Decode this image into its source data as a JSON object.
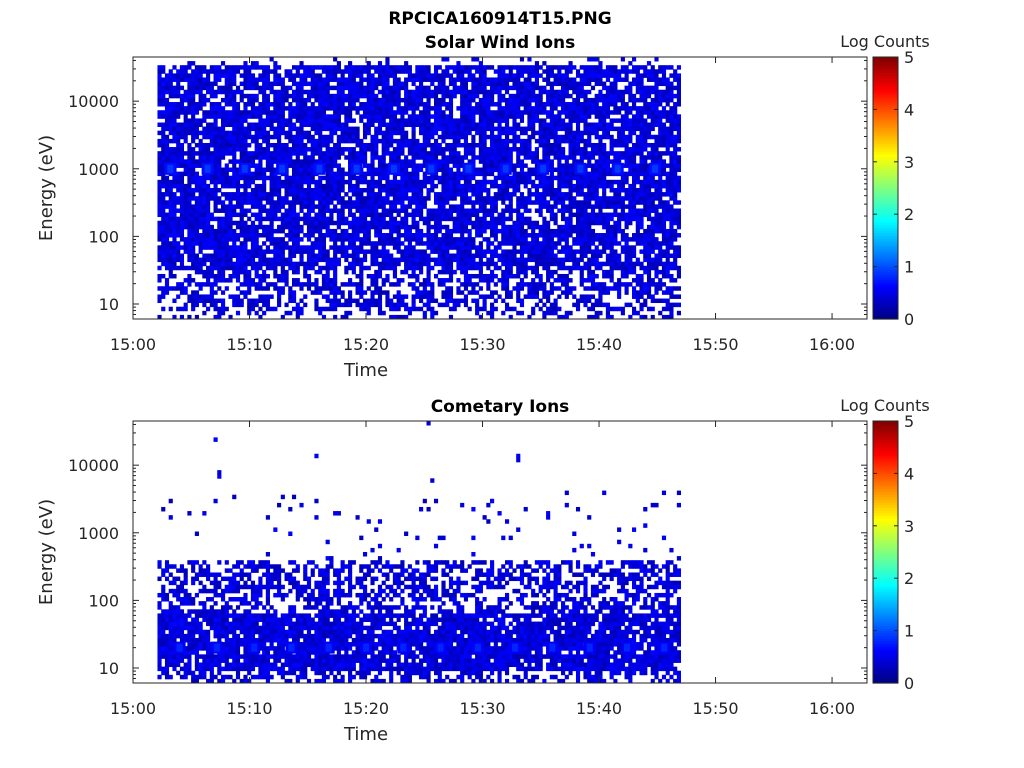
{
  "figure": {
    "title": "RPCICA160914T15.PNG"
  },
  "chart_data": [
    {
      "type": "heatmap",
      "title": "Solar Wind Ions",
      "xlabel": "Time",
      "ylabel": "Energy (eV)",
      "x_ticks": [
        "15:00",
        "15:10",
        "15:20",
        "15:30",
        "15:40",
        "15:50",
        "16:00"
      ],
      "x_range_minutes": [
        0,
        63
      ],
      "y_ticks": [
        "10",
        "100",
        "1000",
        "10000"
      ],
      "y_scale": "log",
      "y_range": [
        6,
        45000
      ],
      "data_extent_minutes": [
        2.1,
        47
      ],
      "colorbar": {
        "label": "Log Counts",
        "ticks": [
          "0",
          "1",
          "2",
          "3",
          "4",
          "5"
        ],
        "range": [
          0,
          5
        ],
        "colormap": "jet"
      },
      "peaks": [
        {
          "t": 3.2,
          "energy": 1000,
          "log_counts": 0.9
        },
        {
          "t": 6.4,
          "energy": 1000,
          "log_counts": 0.9
        },
        {
          "t": 9.6,
          "energy": 1000,
          "log_counts": 0.9
        },
        {
          "t": 12.8,
          "energy": 1000,
          "log_counts": 0.9
        },
        {
          "t": 16.0,
          "energy": 1000,
          "log_counts": 0.9
        },
        {
          "t": 19.2,
          "energy": 1000,
          "log_counts": 0.9
        },
        {
          "t": 22.4,
          "energy": 1000,
          "log_counts": 0.9
        },
        {
          "t": 25.6,
          "energy": 1000,
          "log_counts": 0.9
        },
        {
          "t": 28.8,
          "energy": 1000,
          "log_counts": 0.9
        },
        {
          "t": 32.0,
          "energy": 1000,
          "log_counts": 0.9
        },
        {
          "t": 35.2,
          "energy": 1000,
          "log_counts": 0.9
        },
        {
          "t": 38.4,
          "energy": 1000,
          "log_counts": 0.9
        },
        {
          "t": 41.6,
          "energy": 1000,
          "log_counts": 0.9
        },
        {
          "t": 44.8,
          "energy": 1000,
          "log_counts": 0.9
        }
      ]
    },
    {
      "type": "heatmap",
      "title": "Cometary Ions",
      "xlabel": "Time",
      "ylabel": "Energy (eV)",
      "x_ticks": [
        "15:00",
        "15:10",
        "15:20",
        "15:30",
        "15:40",
        "15:50",
        "16:00"
      ],
      "x_range_minutes": [
        0,
        63
      ],
      "y_ticks": [
        "10",
        "100",
        "1000",
        "10000"
      ],
      "y_scale": "log",
      "y_range": [
        6,
        45000
      ],
      "data_extent_minutes": [
        2.1,
        47
      ],
      "colorbar": {
        "label": "Log Counts",
        "ticks": [
          "0",
          "1",
          "2",
          "3",
          "4",
          "5"
        ],
        "range": [
          0,
          5
        ],
        "colormap": "jet"
      },
      "peaks": [
        {
          "t": 4.0,
          "energy": 20,
          "log_counts": 0.8
        },
        {
          "t": 7.2,
          "energy": 20,
          "log_counts": 0.8
        },
        {
          "t": 10.4,
          "energy": 20,
          "log_counts": 0.8
        },
        {
          "t": 13.6,
          "energy": 20,
          "log_counts": 0.8
        },
        {
          "t": 16.8,
          "energy": 20,
          "log_counts": 0.8
        },
        {
          "t": 20.0,
          "energy": 20,
          "log_counts": 0.8
        },
        {
          "t": 23.2,
          "energy": 20,
          "log_counts": 0.8
        },
        {
          "t": 26.4,
          "energy": 20,
          "log_counts": 0.8
        },
        {
          "t": 29.6,
          "energy": 20,
          "log_counts": 0.8
        },
        {
          "t": 32.8,
          "energy": 20,
          "log_counts": 0.8
        },
        {
          "t": 36.0,
          "energy": 20,
          "log_counts": 0.8
        },
        {
          "t": 39.2,
          "energy": 20,
          "log_counts": 0.8
        },
        {
          "t": 42.4,
          "energy": 20,
          "log_counts": 0.8
        },
        {
          "t": 45.6,
          "energy": 20,
          "log_counts": 0.8
        }
      ]
    }
  ]
}
